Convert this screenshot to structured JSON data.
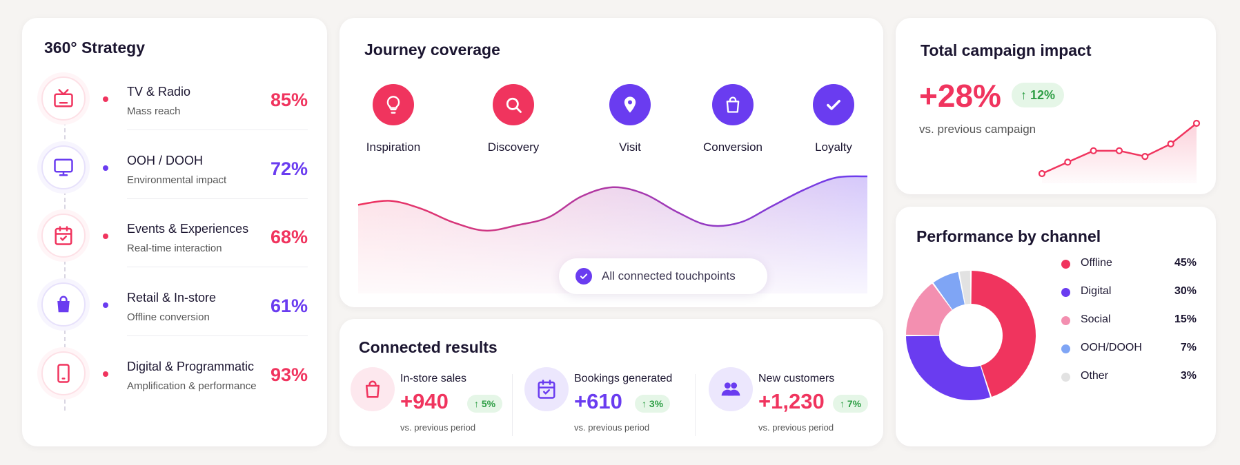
{
  "strategy": {
    "title": "360° Strategy",
    "channels": [
      {
        "name": "TV & Radio",
        "sub": "Mass reach",
        "pct": "85%",
        "color": "#f0345e",
        "icon": "tv-icon"
      },
      {
        "name": "OOH / DOOH",
        "sub": "Environmental impact",
        "pct": "72%",
        "color": "#6a3cf0",
        "icon": "monitor-icon"
      },
      {
        "name": "Events & Experiences",
        "sub": "Real-time interaction",
        "pct": "68%",
        "color": "#f0345e",
        "icon": "calendar-icon"
      },
      {
        "name": "Retail & In-store",
        "sub": "Offline conversion",
        "pct": "61%",
        "color": "#6a3cf0",
        "icon": "shopping-bag-icon"
      },
      {
        "name": "Digital & Programmatic",
        "sub": "Amplification & performance",
        "pct": "93%",
        "color": "#f0345e",
        "icon": "smartphone-icon"
      }
    ]
  },
  "journey": {
    "title": "Journey coverage",
    "steps": [
      {
        "label": "Inspiration",
        "icon": "lightbulb-icon",
        "color": "#f0345e"
      },
      {
        "label": "Discovery",
        "icon": "search-icon",
        "color": "#f0345e"
      },
      {
        "label": "Visit",
        "icon": "location-pin-icon",
        "color": "#6a3cf0"
      },
      {
        "label": "Conversion",
        "icon": "shopping-bag-icon",
        "color": "#6a3cf0"
      },
      {
        "label": "Loyalty",
        "icon": "checkmark-icon",
        "color": "#6a3cf0"
      }
    ],
    "pill": "All connected touchpoints"
  },
  "results": {
    "title": "Connected results",
    "items": [
      {
        "name": "In-store sales",
        "value": "+940",
        "change": "↑ 5%",
        "sub": "vs. previous period",
        "color": "#f0345e",
        "icon": "shopping-bag-icon"
      },
      {
        "name": "Bookings generated",
        "value": "+610",
        "change": "↑ 3%",
        "sub": "vs. previous period",
        "color": "#6a3cf0",
        "icon": "calendar-icon"
      },
      {
        "name": "New customers",
        "value": "+1,230",
        "change": "↑ 7%",
        "sub": "vs. previous period",
        "color": "#f0345e",
        "icon": "users-icon"
      }
    ]
  },
  "impact": {
    "title": "Total campaign impact",
    "value": "+28%",
    "change": "↑ 12%",
    "sub": "vs. previous campaign"
  },
  "performance": {
    "title": "Performance by channel"
  },
  "chart_data": [
    {
      "type": "pie",
      "title": "Performance by channel",
      "categories": [
        "Offline",
        "Digital",
        "Social",
        "OOH/DOOH",
        "Other"
      ],
      "values": [
        45,
        30,
        15,
        7,
        3
      ],
      "labels": [
        "45%",
        "30%",
        "15%",
        "7%",
        "3%"
      ],
      "colors": [
        "#f0345e",
        "#6a3cf0",
        "#f38fb0",
        "#7fa5f5",
        "#e2e2e2"
      ],
      "legend": "right"
    },
    {
      "type": "line",
      "title": "",
      "values": [
        1,
        2,
        3,
        3,
        2.5,
        3.6,
        5.4
      ],
      "color": "#f0345e",
      "axes": false
    },
    {
      "type": "area",
      "title": "",
      "values": [
        4.5,
        4.8,
        4.2,
        3.2,
        2.6,
        3.0,
        3.6,
        5.1,
        5.8,
        5.3,
        4.0,
        3.0,
        3.2,
        4.4,
        5.6,
        6.5,
        6.6
      ],
      "colors": [
        "#f0345e",
        "#6a3cf0"
      ],
      "axes": false
    }
  ]
}
